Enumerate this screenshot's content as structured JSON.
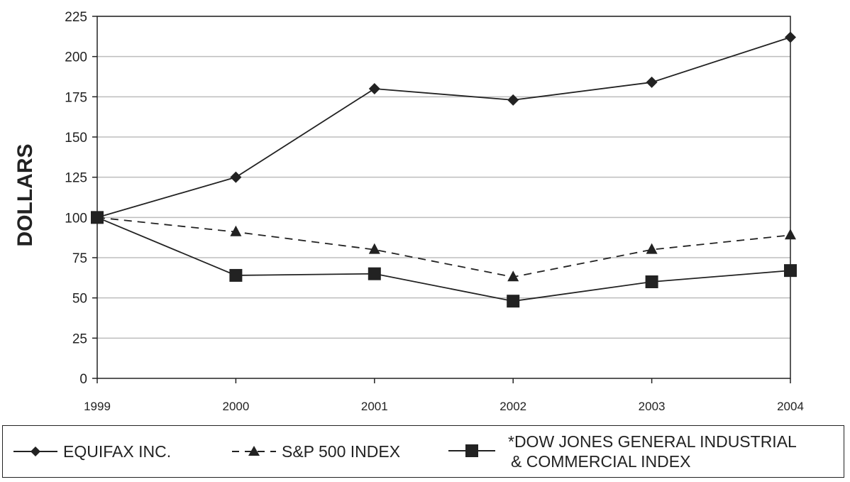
{
  "chart_data": {
    "type": "line",
    "categories": [
      "1999",
      "2000",
      "2001",
      "2002",
      "2003",
      "2004"
    ],
    "series": [
      {
        "name": "EQUIFAX INC.",
        "values": [
          100,
          125,
          180,
          173,
          184,
          212
        ],
        "marker": "diamond",
        "line": "solid"
      },
      {
        "name": "S&P 500 INDEX",
        "values": [
          100,
          91,
          80,
          63,
          80,
          89
        ],
        "marker": "triangle",
        "line": "dashed"
      },
      {
        "name": "*DOW JONES GENERAL INDUSTRIAL & COMMERCIAL INDEX",
        "values": [
          100,
          64,
          65,
          48,
          60,
          67
        ],
        "marker": "square",
        "line": "solid"
      }
    ],
    "ylabel": "DOLLARS",
    "ylim": [
      0,
      225
    ],
    "yticks": [
      0,
      25,
      50,
      75,
      100,
      125,
      150,
      175,
      200,
      225
    ],
    "grid": true,
    "legend_position": "bottom"
  },
  "legend": {
    "line1_label": "EQUIFAX INC.",
    "line2_label": "S&P 500 INDEX",
    "line3_label_a": "*DOW JONES GENERAL INDUSTRIAL",
    "line3_label_b": "& COMMERCIAL INDEX"
  },
  "colors": {
    "ink": "#222222",
    "grid": "#bdbdbd"
  }
}
